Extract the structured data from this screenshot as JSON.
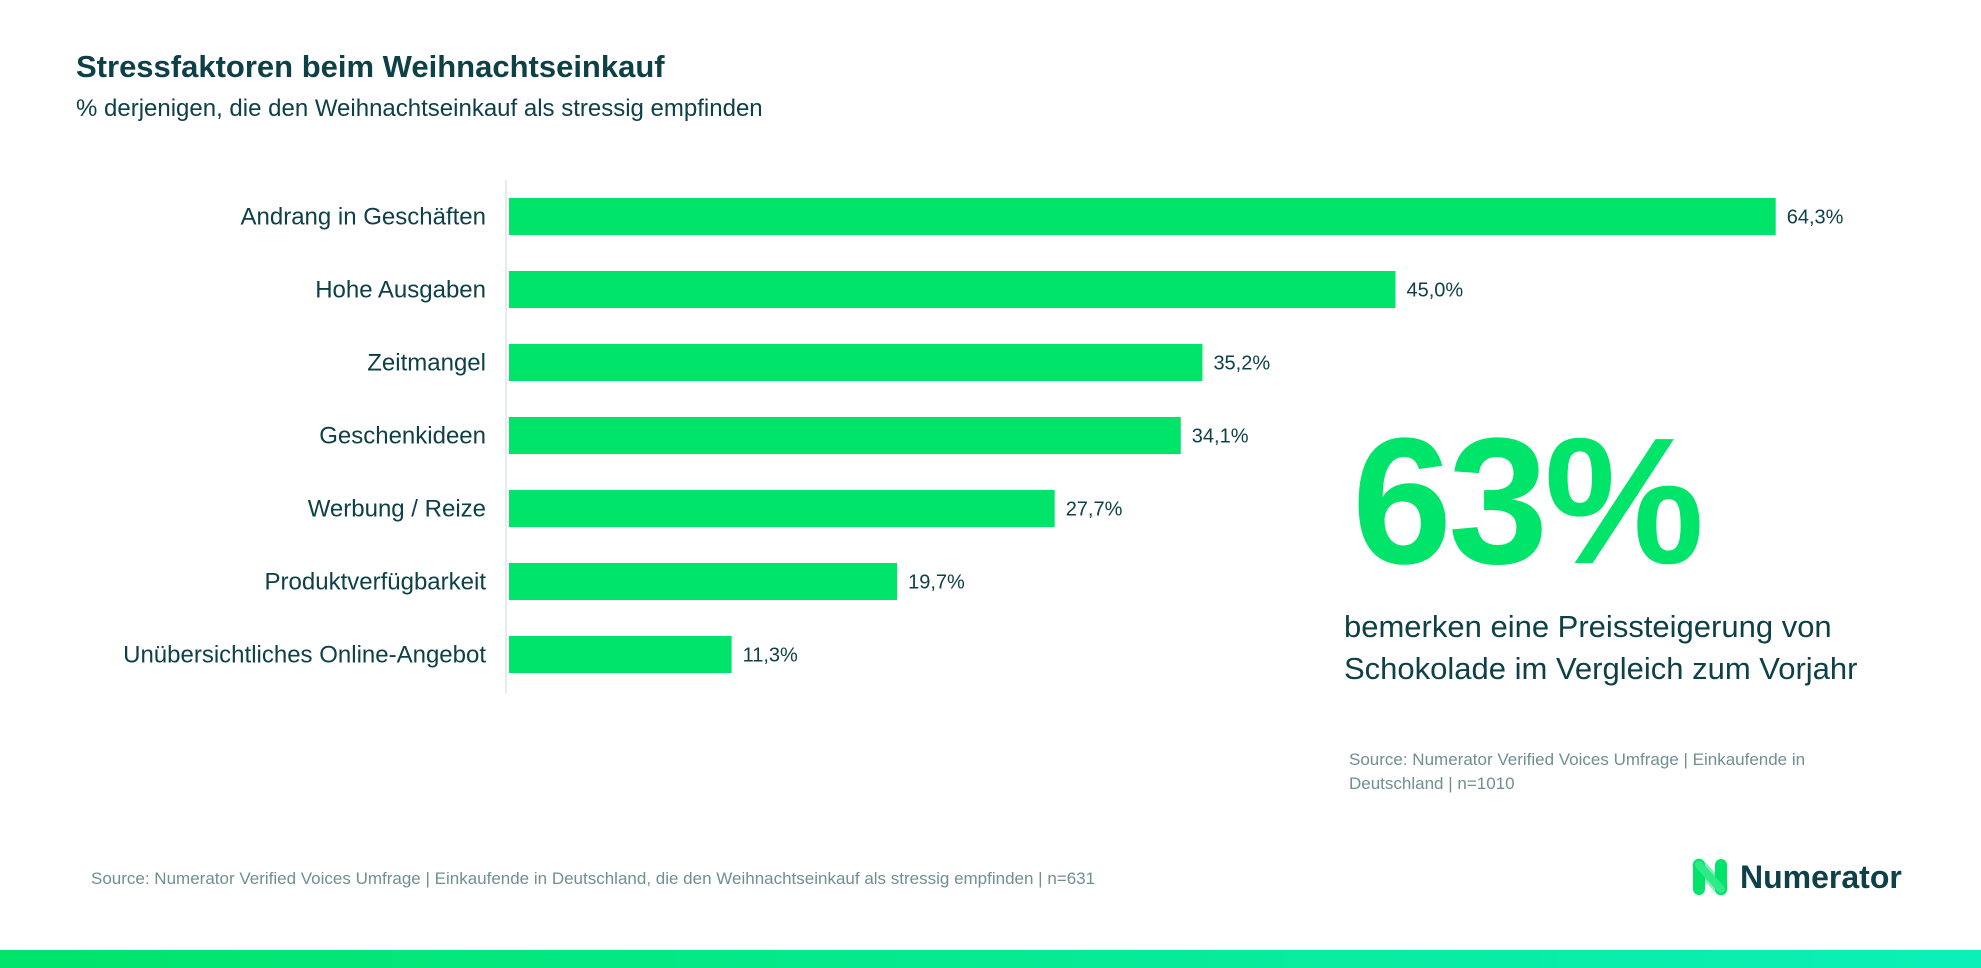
{
  "chart_data": {
    "type": "bar",
    "orientation": "horizontal",
    "title": "Stressfaktoren beim Weihnachtseinkauf",
    "subtitle": "% derjenigen, die den Weihnachtseinkauf als stressig empfinden",
    "categories": [
      "Andrang in Geschäften",
      "Hohe Ausgaben",
      "Zeitmangel",
      "Geschenkideen",
      "Werbung / Reize",
      "Produktverfügbarkeit",
      "Unübersichtliches Online-Angebot"
    ],
    "values": [
      64.3,
      45.0,
      35.2,
      34.1,
      27.7,
      19.7,
      11.3
    ],
    "value_labels": [
      "64,3%",
      "45,0%",
      "35,2%",
      "34,1%",
      "27,7%",
      "19,7%",
      "11,3%"
    ],
    "xlim": [
      0,
      70
    ],
    "grid": false,
    "bar_color": "#00e46a"
  },
  "callout": {
    "big_number": "63%",
    "text": "bemerken eine Preissteigerung von Schokolade im Vergleich zum Vorjahr",
    "source": "Source: Numerator Verified Voices Umfrage | Einkaufende in Deutschland | n=1010"
  },
  "footer": {
    "source": "Source: Numerator Verified Voices Umfrage | Einkaufende in Deutschland, die den Weihnachtseinkauf als stressig empfinden | n=631",
    "logo_text": "Numerator"
  },
  "colors": {
    "accent": "#00e46a",
    "text": "#0d4047",
    "muted": "#6f8f91"
  }
}
